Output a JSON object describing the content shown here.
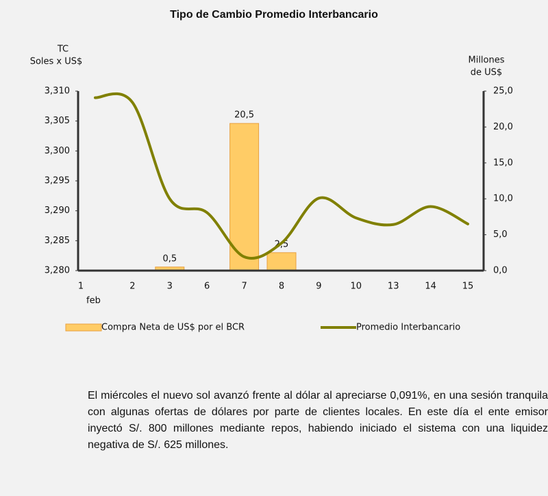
{
  "chart_data": {
    "type": "bar-line",
    "title": "Tipo de Cambio Promedio Interbancario",
    "y_label": [
      "TC",
      "Soles x US$"
    ],
    "y2_label": [
      "Millones",
      "de US$"
    ],
    "categories": [
      "1",
      "2",
      "3",
      "6",
      "7",
      "8",
      "9",
      "10",
      "13",
      "14",
      "15"
    ],
    "month_label": "feb",
    "series": [
      {
        "name": "Compra Neta de US$ por el BCR",
        "type": "bar",
        "axis": "y2",
        "color": "#ffcc66",
        "edge_color": "#e8a040",
        "values": [
          null,
          null,
          0.5,
          null,
          20.5,
          2.5,
          null,
          null,
          null,
          null,
          null
        ],
        "value_labels": [
          null,
          null,
          "0,5",
          null,
          "20,5",
          "2,5",
          null,
          null,
          null,
          null,
          null
        ]
      },
      {
        "name": "Promedio Interbancario",
        "type": "line",
        "axis": "y",
        "color": "#808000",
        "values": [
          3.3089,
          3.3081,
          3.292,
          3.2897,
          3.2823,
          3.2846,
          3.2921,
          3.2888,
          3.2877,
          3.2907,
          3.2878
        ]
      }
    ],
    "ylim": [
      3.28,
      3.31
    ],
    "yticks": [
      {
        "value": 3.28,
        "label": "3,280"
      },
      {
        "value": 3.285,
        "label": "3,285"
      },
      {
        "value": 3.29,
        "label": "3,290"
      },
      {
        "value": 3.295,
        "label": "3,295"
      },
      {
        "value": 3.3,
        "label": "3,300"
      },
      {
        "value": 3.305,
        "label": "3,305"
      },
      {
        "value": 3.31,
        "label": "3,310"
      }
    ],
    "y2lim": [
      0,
      25
    ],
    "y2ticks": [
      {
        "value": 0,
        "label": "0,0"
      },
      {
        "value": 5,
        "label": "5,0"
      },
      {
        "value": 10,
        "label": "10,0"
      },
      {
        "value": 15,
        "label": "15,0"
      },
      {
        "value": 20,
        "label": "20,0"
      },
      {
        "value": 25,
        "label": "25,0"
      }
    ],
    "legend": "bottom"
  },
  "paragraph": "El miércoles el nuevo sol avanzó frente al dólar al apreciarse 0,091%, en una sesión tranquila con algunas ofertas de dólares por parte de clientes locales. En este día el ente emisor inyectó S/. 800 millones mediante repos, habiendo iniciado el sistema con una liquidez negativa de S/. 625 millones."
}
